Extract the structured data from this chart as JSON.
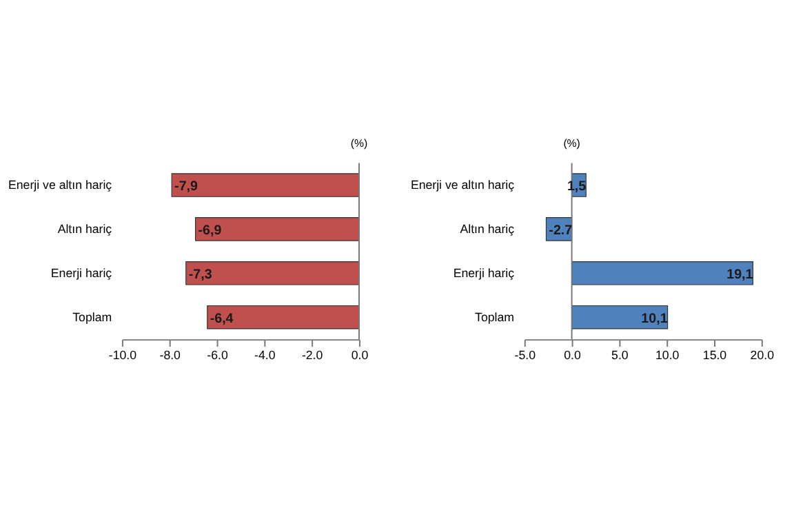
{
  "chart_data": [
    {
      "type": "bar",
      "orientation": "horizontal",
      "categories": [
        "Enerji ve altın hariç",
        "Altın hariç",
        "Enerji hariç",
        "Toplam"
      ],
      "series": [
        {
          "color": "#c0504d",
          "values": [
            -7.9,
            -6.9,
            -7.3,
            -6.4
          ],
          "value_labels": [
            "-7,9",
            "-6,9",
            "-7,3",
            "-6,4"
          ]
        }
      ],
      "xlim": [
        -10,
        0
      ],
      "xticks": [
        {
          "value": -10,
          "label": "-10.0"
        },
        {
          "value": -8,
          "label": "-8.0"
        },
        {
          "value": -6,
          "label": "-6.0"
        },
        {
          "value": -4,
          "label": "-4.0"
        },
        {
          "value": -2,
          "label": "-2.0"
        },
        {
          "value": 0,
          "label": "0.0"
        }
      ],
      "annotations": [
        "(%)"
      ],
      "grid": false,
      "ref_lines": [
        {
          "axis": "x",
          "value": 0,
          "color": "#777777"
        }
      ]
    },
    {
      "type": "bar",
      "orientation": "horizontal",
      "categories": [
        "Enerji ve altın hariç",
        "Altın hariç",
        "Enerji hariç",
        "Toplam"
      ],
      "series": [
        {
          "color": "#4f81bd",
          "values": [
            1.5,
            -2.7,
            19.1,
            10.1
          ],
          "value_labels": [
            "1,5",
            "-2.7",
            "19,1",
            "10,1"
          ]
        }
      ],
      "xlim": [
        -5,
        20
      ],
      "xticks": [
        {
          "value": -5,
          "label": "-5.0"
        },
        {
          "value": 0,
          "label": "0.0"
        },
        {
          "value": 5,
          "label": "5.0"
        },
        {
          "value": 10,
          "label": "10.0"
        },
        {
          "value": 15,
          "label": "15.0"
        },
        {
          "value": 20,
          "label": "20.0"
        }
      ],
      "annotations": [
        "(%)"
      ],
      "grid": false,
      "ref_lines": [
        {
          "axis": "x",
          "value": 0,
          "color": "#777777"
        }
      ]
    }
  ]
}
